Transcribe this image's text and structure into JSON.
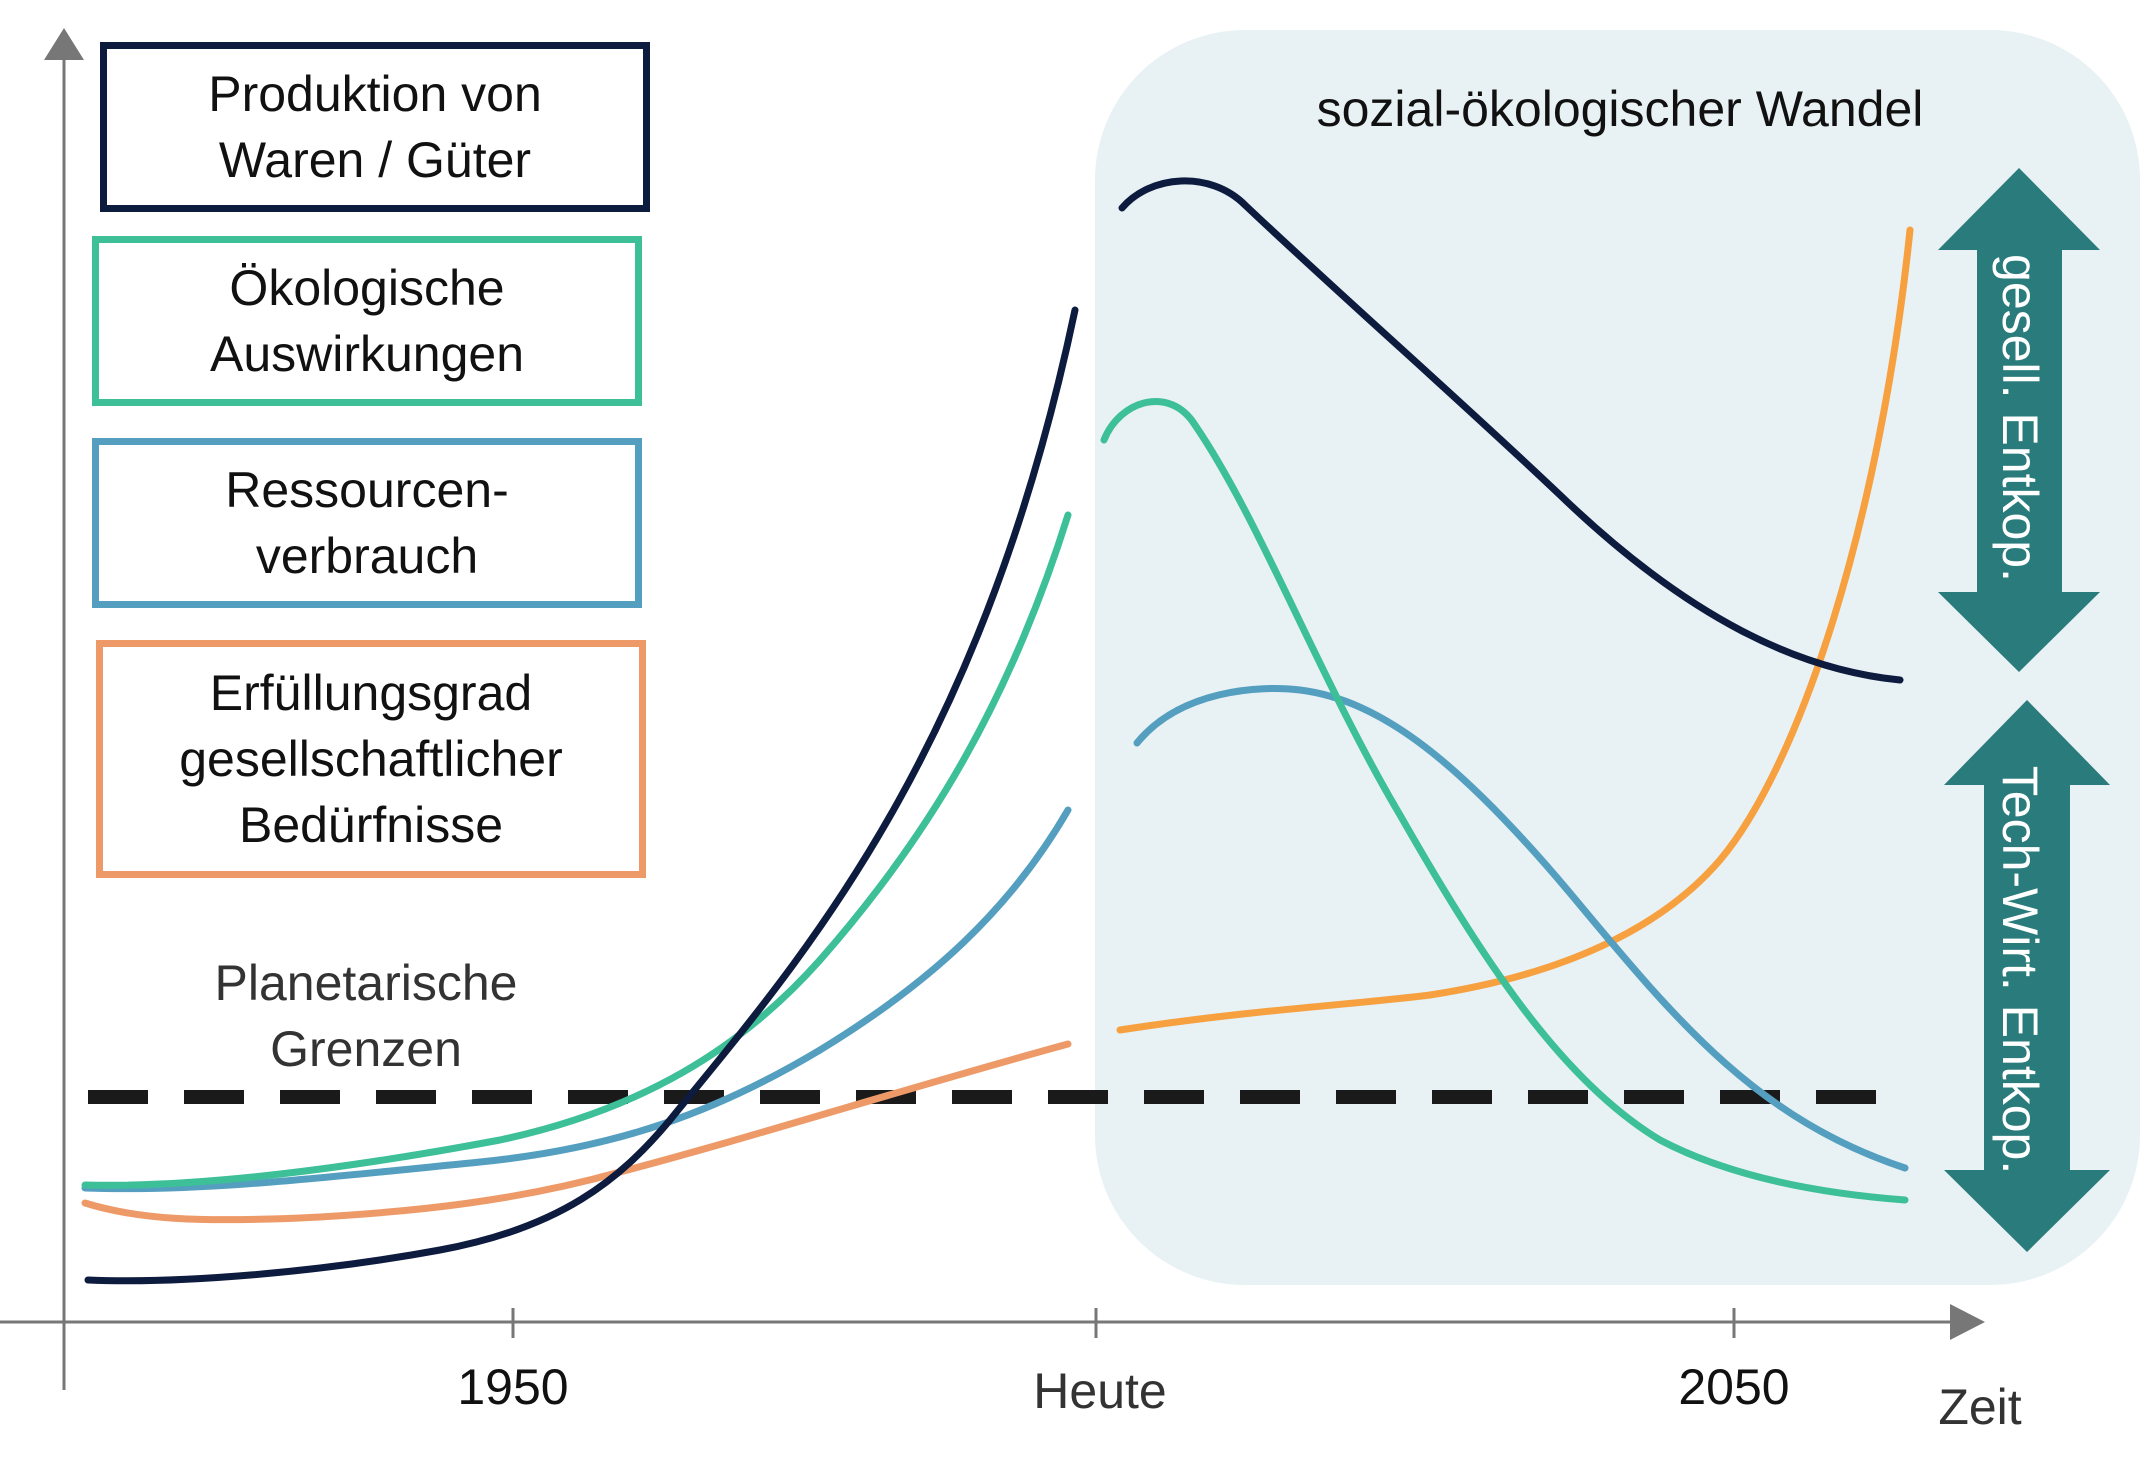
{
  "legend": {
    "production": [
      "Produktion von",
      "Waren / Güter"
    ],
    "ecological": [
      "Ökologische",
      "Auswirkungen"
    ],
    "resource": [
      "Ressourcen-",
      "verbrauch"
    ],
    "needs": [
      "Erfüllungsgrad",
      "gesellschaftlicher",
      "Bedürfnisse"
    ]
  },
  "boundaries": [
    "Planetarische",
    "Grenzen"
  ],
  "transition_title": "sozial-ökologischer Wandel",
  "x_ticks": [
    "1950",
    "Heute",
    "2050"
  ],
  "x_axis_label": "Zeit",
  "arrows": {
    "social": "gesell. Entkop.",
    "tech": "Tech-Wirt. Entkop."
  },
  "colors": {
    "production": "#0d1b3e",
    "ecological": "#3dbf98",
    "resource": "#549fc0",
    "needs_history": "#ee9a68",
    "needs_future": "#f6a040",
    "arrow": "#2a7b7b",
    "transition_bg": "#e8f1f3",
    "boundary_line": "#1a1a1a",
    "axis": "#777777"
  }
}
